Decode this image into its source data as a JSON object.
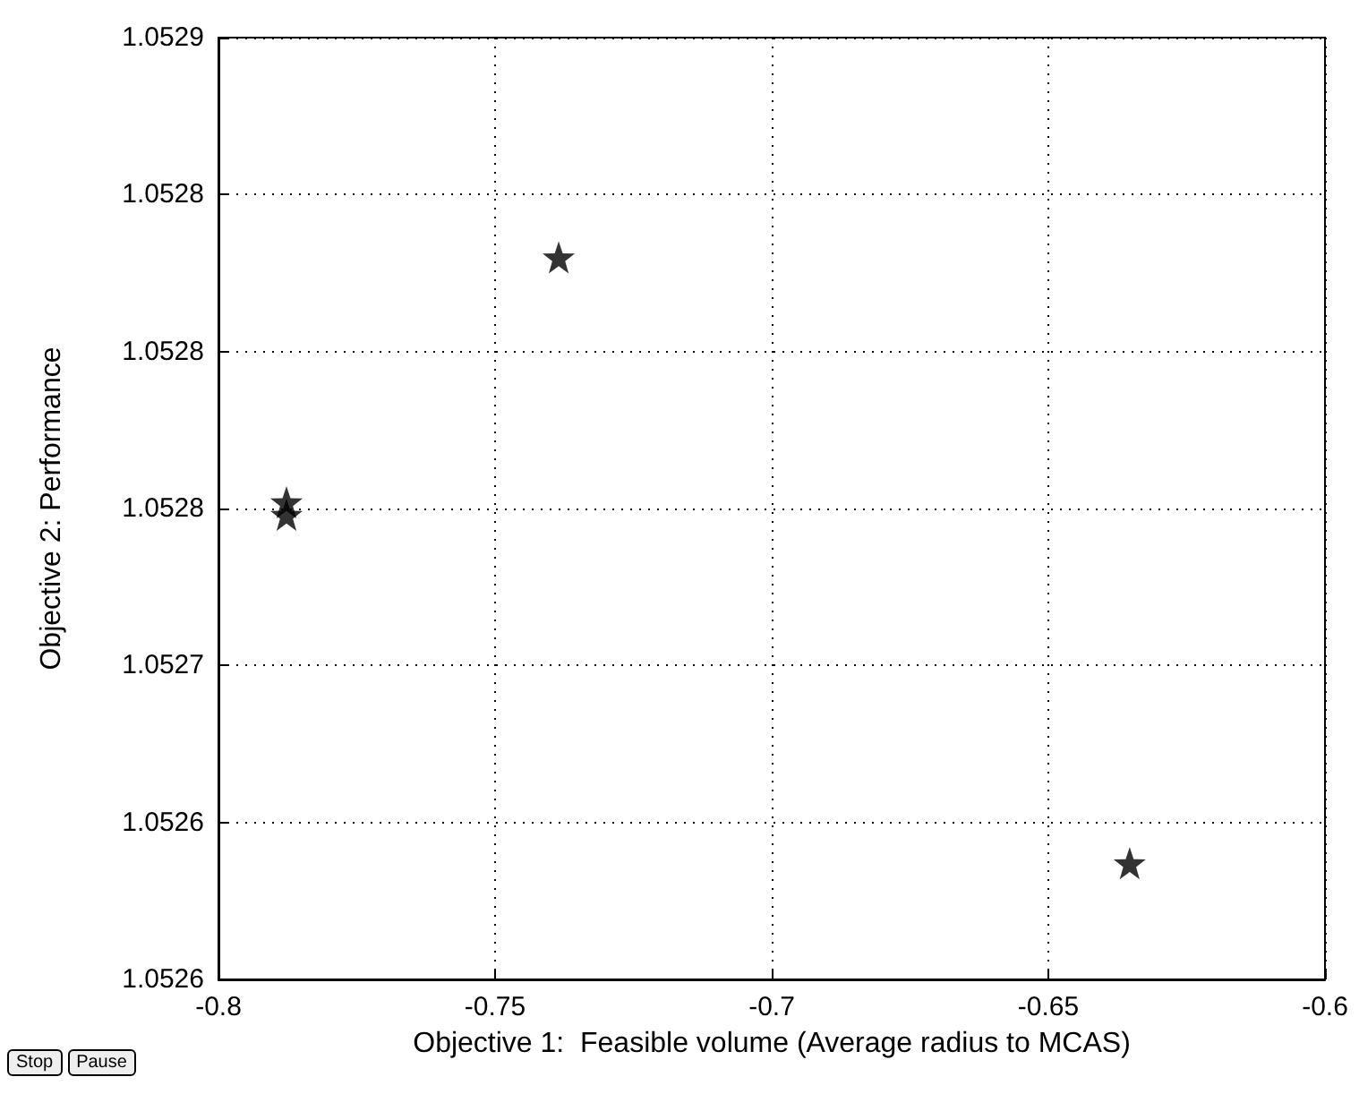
{
  "chart_data": {
    "type": "scatter",
    "xlabel": "Objective 1:  Feasible volume (Average radius to MCAS)",
    "ylabel": "Objective 2: Performance",
    "x": [
      -0.7877,
      -0.7877,
      -0.7385,
      -0.6353
    ],
    "values": [
      1.052748,
      1.052752,
      1.05283,
      1.052637
    ],
    "color": "#000000",
    "marker": "star",
    "xlim": [
      -0.8,
      -0.6
    ],
    "xticks": [
      -0.8,
      -0.75,
      -0.7,
      -0.65,
      -0.6
    ],
    "ylim": [
      1.0526,
      1.0529
    ],
    "yticks": [
      {
        "value": 1.0526,
        "label": "1.0526"
      },
      {
        "value": 1.05265,
        "label": "1.0526"
      },
      {
        "value": 1.0527,
        "label": "1.0527"
      },
      {
        "value": 1.05275,
        "label": "1.0528"
      },
      {
        "value": 1.0528,
        "label": "1.0528"
      },
      {
        "value": 1.05285,
        "label": "1.0528"
      },
      {
        "value": 1.0529,
        "label": "1.0529"
      }
    ],
    "grid": true,
    "line_style": "dotted",
    "annotations": [
      "Stop",
      "Pause"
    ]
  }
}
